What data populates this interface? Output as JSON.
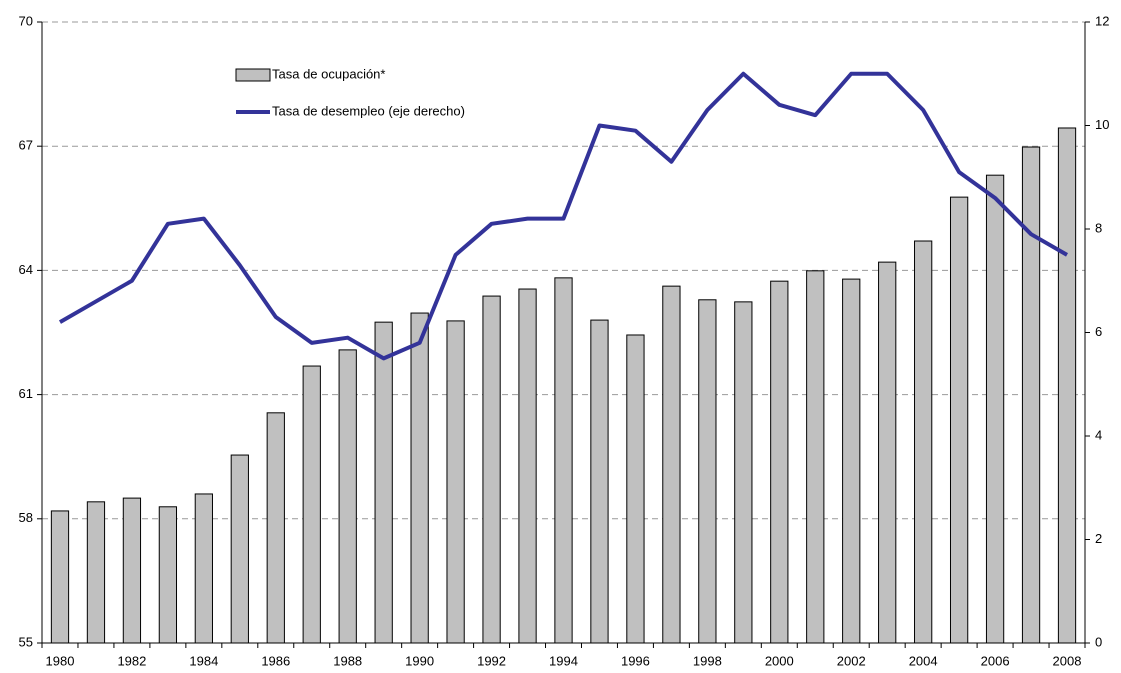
{
  "chart_data": {
    "type": "bar-line",
    "categories": [
      "1980",
      null,
      "1982",
      null,
      "1984",
      null,
      "1986",
      null,
      "1988",
      null,
      "1990",
      null,
      "1992",
      null,
      "1994",
      null,
      "1996",
      null,
      "1998",
      null,
      "2000",
      null,
      "2002",
      null,
      "2004",
      null,
      "2006",
      null,
      "2008"
    ],
    "series": [
      {
        "name": "Tasa de ocupación*",
        "type": "bar",
        "color": "#c0c0c0",
        "values": [
          58.19,
          58.41,
          58.5,
          58.29,
          58.6,
          59.54,
          60.56,
          61.69,
          62.08,
          62.75,
          62.97,
          62.78,
          63.38,
          63.55,
          63.82,
          62.8,
          62.44,
          63.62,
          63.29,
          63.24,
          63.74,
          63.99,
          63.79,
          64.2,
          64.71,
          65.77,
          66.3,
          66.98,
          67.44
        ]
      },
      {
        "name": "Tasa de desempleo (eje derecho)",
        "type": "line",
        "axis": "y2",
        "color": "#333399",
        "values": [
          6.2,
          6.6,
          7.0,
          8.1,
          8.2,
          7.3,
          6.3,
          5.8,
          5.9,
          5.5,
          5.8,
          7.5,
          8.1,
          8.2,
          8.2,
          10.0,
          9.9,
          9.3,
          10.3,
          11.0,
          10.4,
          10.2,
          11.0,
          11.0,
          10.3,
          9.1,
          8.6,
          7.9,
          7.5
        ]
      }
    ],
    "ylim": [
      55,
      70
    ],
    "yticks": [
      55,
      58,
      61,
      64,
      67,
      70
    ],
    "y2lim": [
      0,
      12
    ],
    "y2ticks": [
      0,
      2,
      4,
      6,
      8,
      10,
      12
    ],
    "grid": true,
    "legend": "top-left"
  }
}
